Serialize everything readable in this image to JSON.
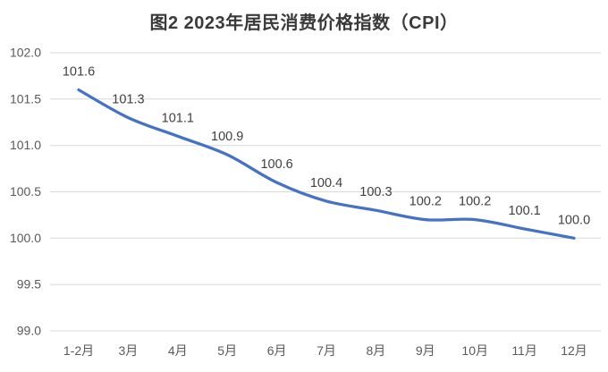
{
  "chart_data": {
    "type": "line",
    "title": "图2 2023年居民消费价格指数（CPI）",
    "categories": [
      "1-2月",
      "3月",
      "4月",
      "5月",
      "6月",
      "7月",
      "8月",
      "9月",
      "10月",
      "11月",
      "12月"
    ],
    "series": [
      {
        "name": "CPI",
        "values": [
          101.6,
          101.3,
          101.1,
          100.9,
          100.6,
          100.4,
          100.3,
          100.2,
          100.2,
          100.1,
          100.0
        ]
      }
    ],
    "data_labels": [
      "101.6",
      "101.3",
      "101.1",
      "100.9",
      "100.6",
      "100.4",
      "100.3",
      "100.2",
      "100.2",
      "100.1",
      "100.0"
    ],
    "y_ticks": [
      "102.0",
      "101.5",
      "101.0",
      "100.5",
      "100.0",
      "99.5",
      "99.0"
    ],
    "ylim": [
      99.0,
      102.0
    ],
    "y_tick_step": 0.5,
    "xlabel": "",
    "ylabel": "",
    "grid": "horizontal",
    "legend": "none",
    "smooth_line": true,
    "line_color": "#4472C4",
    "gridline_color": "#D9D9D9",
    "axis_label_color": "#595959",
    "data_label_color": "#404040",
    "title_color": "#3a3a3a",
    "background_color": "#ffffff"
  }
}
